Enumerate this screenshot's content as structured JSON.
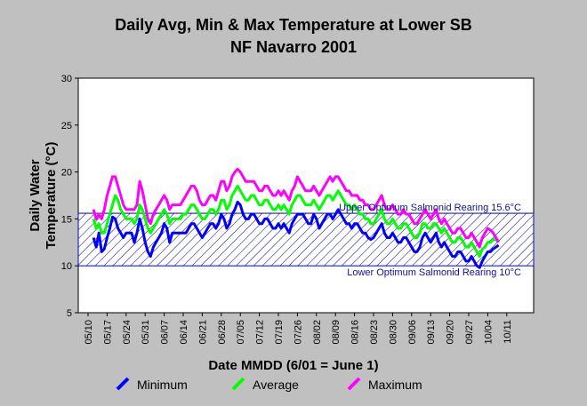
{
  "chart_data": {
    "type": "line",
    "title": "Daily Avg, Min & Max Temperature at Lower SB",
    "subtitle": "NF Navarro 2001",
    "xlabel": "Date MMDD (6/01 = June 1)",
    "ylabel_line1": "Daily Water",
    "ylabel_line2": "Temperature (°C)",
    "ylim": [
      5,
      30
    ],
    "yticks": [
      "30",
      "25",
      "20",
      "15",
      "10",
      "5"
    ],
    "xticks": [
      "05/10",
      "05/17",
      "05/24",
      "05/31",
      "06/07",
      "06/14",
      "06/21",
      "06/28",
      "07/05",
      "07/12",
      "07/19",
      "07/26",
      "08/02",
      "08/09",
      "08/16",
      "08/23",
      "08/30",
      "09/06",
      "09/13",
      "09/20",
      "09/27",
      "10/04",
      "10/11"
    ],
    "grid": false,
    "legend_position": "bottom",
    "annotations": {
      "upper": "Upper Optimum Salmonid Rearing 15.6°C",
      "lower": "Lower Optimum Salmonid Rearing 10°C"
    },
    "band": {
      "low": 10,
      "high": 15.6
    },
    "start_date": "05/12",
    "series": [
      {
        "name": "Minimum",
        "color": "#0000ff",
        "values": [
          13.0,
          12.0,
          13.5,
          11.5,
          11.8,
          13.0,
          14.0,
          15.2,
          15.0,
          14.0,
          13.5,
          13.0,
          13.5,
          13.5,
          13.5,
          12.5,
          13.5,
          15.0,
          14.0,
          12.5,
          11.5,
          11.0,
          12.0,
          12.5,
          13.0,
          13.5,
          14.5,
          14.0,
          12.5,
          13.5,
          13.5,
          13.5,
          13.5,
          13.5,
          13.5,
          14.0,
          14.5,
          14.5,
          14.0,
          13.5,
          13.0,
          13.5,
          14.0,
          14.5,
          14.5,
          14.0,
          14.5,
          15.5,
          15.0,
          14.0,
          14.5,
          15.5,
          16.0,
          16.8,
          16.5,
          15.5,
          15.0,
          15.0,
          15.5,
          15.5,
          15.0,
          14.5,
          14.5,
          15.0,
          15.0,
          14.5,
          14.0,
          14.0,
          14.5,
          14.0,
          14.5,
          14.0,
          13.5,
          14.5,
          15.0,
          15.5,
          15.5,
          15.5,
          15.0,
          14.5,
          14.5,
          15.5,
          15.0,
          14.0,
          14.5,
          15.0,
          15.5,
          15.5,
          15.0,
          15.5,
          16.0,
          15.5,
          15.0,
          14.5,
          14.5,
          14.0,
          14.5,
          14.5,
          14.0,
          13.5,
          13.5,
          13.0,
          12.8,
          13.0,
          13.5,
          14.0,
          14.5,
          13.5,
          13.0,
          13.0,
          13.5,
          13.0,
          12.5,
          12.5,
          13.0,
          13.0,
          12.5,
          12.0,
          11.5,
          11.5,
          12.0,
          13.0,
          13.5,
          13.0,
          12.5,
          13.0,
          13.5,
          12.5,
          12.0,
          12.5,
          12.0,
          11.5,
          11.0,
          11.0,
          11.5,
          11.5,
          11.0,
          10.5,
          10.5,
          11.0,
          10.5,
          10.0,
          9.8,
          10.5,
          11.0,
          11.5,
          11.5,
          11.8,
          12.0,
          12.2
        ]
      },
      {
        "name": "Average",
        "color": "#00ff00",
        "values": [
          15.0,
          14.0,
          14.5,
          13.5,
          13.5,
          14.5,
          15.5,
          16.5,
          17.5,
          17.0,
          16.0,
          15.5,
          15.0,
          15.0,
          15.0,
          14.5,
          15.0,
          16.5,
          16.0,
          15.0,
          14.0,
          13.5,
          14.0,
          14.5,
          15.0,
          15.5,
          16.0,
          15.5,
          14.5,
          15.0,
          15.0,
          15.0,
          15.0,
          15.5,
          15.5,
          16.0,
          16.5,
          16.5,
          16.0,
          15.5,
          15.0,
          15.0,
          15.5,
          16.0,
          16.0,
          15.5,
          16.0,
          17.0,
          17.0,
          16.0,
          16.5,
          17.5,
          18.0,
          18.5,
          18.0,
          17.5,
          17.0,
          17.0,
          17.5,
          17.5,
          17.0,
          16.5,
          16.5,
          17.0,
          17.0,
          16.5,
          16.0,
          16.0,
          16.5,
          16.0,
          16.5,
          16.0,
          15.5,
          16.5,
          17.0,
          17.5,
          17.5,
          17.0,
          16.5,
          16.5,
          16.5,
          17.0,
          16.5,
          16.0,
          16.5,
          17.0,
          17.5,
          17.5,
          17.0,
          17.5,
          18.0,
          17.5,
          17.0,
          16.5,
          16.5,
          16.0,
          16.5,
          16.0,
          15.5,
          15.5,
          15.0,
          15.0,
          14.5,
          14.5,
          15.0,
          15.5,
          16.0,
          15.0,
          14.5,
          14.5,
          15.0,
          14.5,
          14.0,
          14.0,
          14.5,
          14.5,
          14.0,
          13.5,
          13.0,
          13.0,
          13.5,
          14.5,
          14.5,
          14.0,
          14.0,
          14.5,
          14.5,
          14.0,
          13.5,
          14.0,
          13.5,
          13.0,
          12.5,
          12.5,
          13.0,
          13.0,
          12.5,
          12.0,
          12.0,
          12.5,
          12.0,
          11.5,
          11.0,
          11.8,
          12.0,
          12.5,
          12.5,
          12.8,
          12.8,
          12.5
        ]
      },
      {
        "name": "Maximum",
        "color": "#ff00ff",
        "values": [
          16.0,
          15.0,
          15.5,
          15.0,
          16.0,
          17.5,
          18.5,
          19.5,
          19.5,
          18.5,
          17.5,
          16.5,
          16.0,
          16.0,
          16.0,
          16.0,
          16.5,
          19.0,
          18.0,
          16.5,
          15.0,
          14.5,
          15.5,
          16.0,
          16.5,
          17.0,
          17.5,
          17.0,
          16.0,
          16.5,
          16.5,
          16.5,
          16.5,
          17.0,
          17.5,
          18.0,
          18.5,
          18.5,
          18.0,
          17.0,
          16.5,
          16.5,
          17.0,
          17.5,
          17.5,
          17.0,
          18.0,
          19.0,
          19.0,
          18.0,
          18.5,
          19.5,
          20.0,
          20.3,
          20.0,
          19.5,
          19.0,
          19.0,
          19.0,
          19.0,
          18.5,
          18.0,
          18.0,
          18.5,
          18.5,
          18.0,
          17.5,
          17.5,
          18.0,
          17.5,
          18.0,
          17.5,
          17.0,
          18.0,
          18.5,
          19.5,
          19.0,
          18.5,
          18.0,
          18.0,
          18.0,
          18.5,
          18.0,
          17.5,
          18.0,
          18.5,
          19.0,
          19.5,
          19.0,
          19.5,
          19.5,
          19.0,
          18.5,
          18.0,
          18.0,
          17.5,
          17.5,
          17.5,
          17.0,
          17.0,
          16.5,
          16.5,
          16.0,
          16.0,
          16.5,
          17.0,
          17.5,
          16.5,
          16.0,
          16.0,
          16.5,
          16.0,
          15.5,
          15.5,
          16.0,
          15.5,
          15.5,
          15.0,
          14.5,
          14.5,
          15.0,
          15.5,
          16.0,
          15.5,
          15.0,
          15.5,
          16.0,
          15.0,
          14.5,
          15.0,
          14.5,
          14.0,
          13.5,
          13.5,
          14.0,
          14.0,
          13.5,
          13.0,
          13.0,
          13.5,
          13.0,
          12.5,
          12.0,
          13.0,
          13.5,
          14.0,
          13.8,
          13.5,
          13.0,
          12.5
        ]
      }
    ]
  }
}
